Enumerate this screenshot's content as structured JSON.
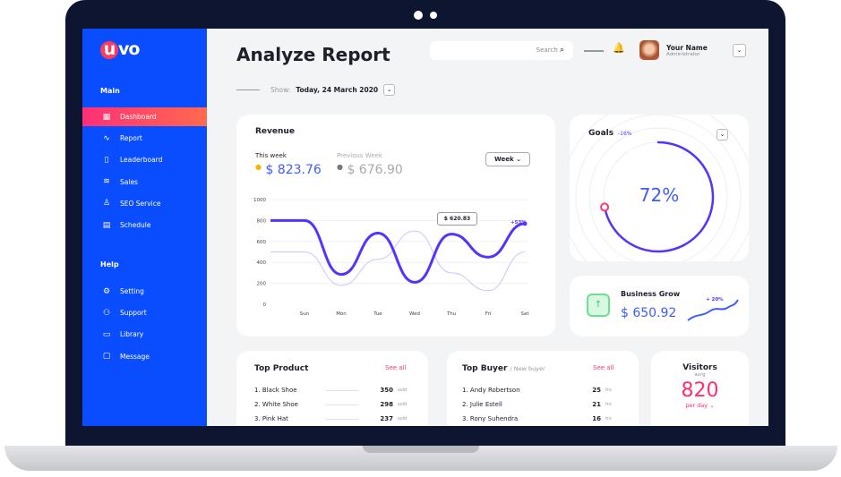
{
  "app": {
    "logo": "uvo",
    "page_title": "Analyze Report"
  },
  "show": {
    "label": "Show:",
    "value": "Today, 24 March 2020"
  },
  "search": {
    "placeholder": "Search"
  },
  "user": {
    "name": "Your Name",
    "role": "Administrator"
  },
  "sidebar": {
    "main_label": "Main",
    "help_label": "Help",
    "main_items": [
      {
        "label": "Dashboard",
        "icon": "grid-icon",
        "active": true
      },
      {
        "label": "Report",
        "icon": "activity-icon"
      },
      {
        "label": "Leaderboard",
        "icon": "clipboard-icon"
      },
      {
        "label": "Sales",
        "icon": "database-icon"
      },
      {
        "label": "SEO Service",
        "icon": "user-icon"
      },
      {
        "label": "Schedule",
        "icon": "calendar-icon"
      }
    ],
    "help_items": [
      {
        "label": "Setting",
        "icon": "gear-icon"
      },
      {
        "label": "Support",
        "icon": "users-icon"
      },
      {
        "label": "Library",
        "icon": "folder-icon"
      },
      {
        "label": "Message",
        "icon": "message-icon"
      }
    ]
  },
  "revenue": {
    "title": "Revenue",
    "this_week_label": "This week",
    "this_week_value": "$ 823.76",
    "prev_week_label": "Previous Week",
    "prev_week_value": "$ 676.90",
    "period": "Week",
    "tooltip": "$ 620.83",
    "change": "+53%"
  },
  "chart_data": {
    "type": "line",
    "categories": [
      "Sun",
      "Mon",
      "Tue",
      "Wed",
      "Thu",
      "Fri",
      "Sat"
    ],
    "ylim": [
      0,
      1000
    ],
    "yticks": [
      0,
      200,
      400,
      600,
      800,
      1000
    ],
    "grid": true,
    "series": [
      {
        "values": [
          800,
          285,
          680,
          210,
          670,
          450,
          770
        ],
        "color": "#5533ff"
      },
      {
        "values": [
          500,
          180,
          430,
          700,
          300,
          130,
          500
        ],
        "color": "#c9c6ff"
      }
    ]
  },
  "goals": {
    "title": "Goals",
    "change": "-16%",
    "percent": 72,
    "percent_label": "72%"
  },
  "business": {
    "title": "Business Grow",
    "value": "$ 650.92",
    "change": "+ 20%"
  },
  "top_product": {
    "title": "Top Product",
    "see_all": "See all",
    "unit": "sold",
    "items": [
      {
        "name": "1. Black Shoe",
        "value": "350"
      },
      {
        "name": "2. White Shoe",
        "value": "298"
      },
      {
        "name": "3. Pink Hat",
        "value": "237"
      }
    ]
  },
  "top_buyer": {
    "title": "Top Buyer",
    "subtitle": "/ New buyer",
    "see_all": "See all",
    "unit": "trs",
    "items": [
      {
        "name": "1. Andy Robertson",
        "value": "25"
      },
      {
        "name": "2. Julie Estell",
        "value": "21"
      },
      {
        "name": "3. Rony Suhendra",
        "value": "16"
      }
    ]
  },
  "visitors": {
    "title": "Visitors",
    "subtitle": "avrg",
    "value": "820",
    "period": "per day"
  },
  "colors": {
    "sidebar": "#0a4dff",
    "accent": "#5533ff",
    "pink": "#ff2f78"
  }
}
